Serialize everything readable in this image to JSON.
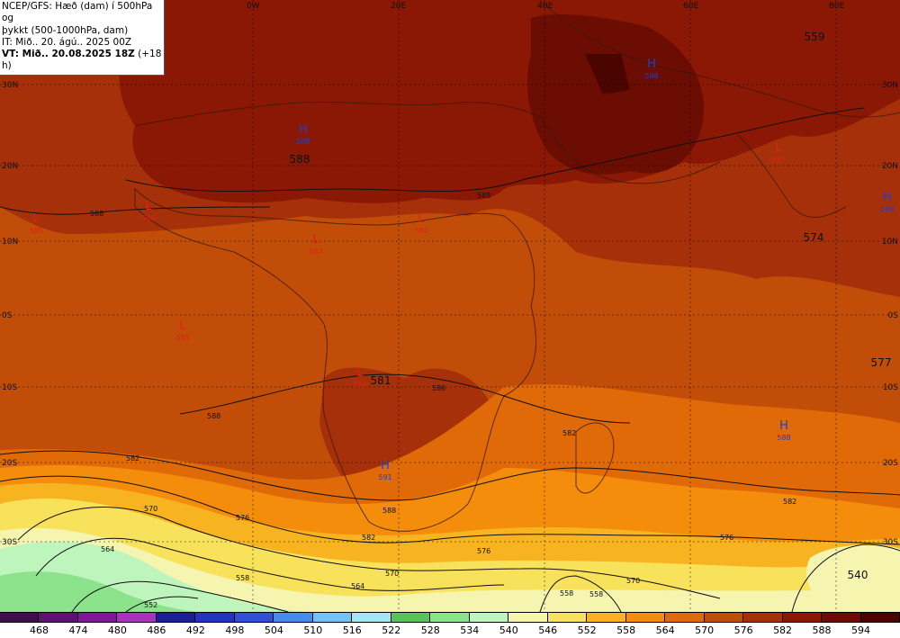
{
  "header": {
    "line1": "NCEP/GFS: Hæð (dam) í 500hPa og",
    "line2": "þykkt (500-1000hPa, dam)",
    "line3": "IT: Mið.. 20. ágú.. 2025 00Z",
    "line4_bold": "VT: Mið.. 20.08.2025 18Z",
    "line4_rest": " (+18 h)"
  },
  "lon_labels": [
    "0W",
    "20E",
    "40E",
    "60E",
    "80E"
  ],
  "lat_labels": [
    "30N",
    "20N",
    "10N",
    "0S",
    "10S",
    "20S",
    "30S"
  ],
  "pressure_centers": [
    {
      "type": "H",
      "value": "588"
    },
    {
      "type": "H",
      "value": "588"
    },
    {
      "type": "H",
      "value": "589"
    },
    {
      "type": "H",
      "value": "588"
    },
    {
      "type": "H",
      "value": "591"
    },
    {
      "type": "L",
      "value": "585"
    },
    {
      "type": "L",
      "value": "586"
    },
    {
      "type": "L",
      "value": "586"
    },
    {
      "type": "L",
      "value": "587"
    },
    {
      "type": "L",
      "value": "585"
    },
    {
      "type": "L",
      "value": "586"
    },
    {
      "type": "L",
      "value": "587"
    }
  ],
  "height_labels": [
    "559",
    "588",
    "574",
    "577",
    "581",
    "540"
  ],
  "contour_labels": [
    "588",
    "588",
    "588",
    "582",
    "582",
    "576",
    "576",
    "570",
    "570",
    "564",
    "564",
    "558",
    "558",
    "552",
    "582",
    "576",
    "570",
    "558",
    "582",
    "586",
    "588"
  ],
  "legend": {
    "colors": [
      "#3e0f4c",
      "#5d1370",
      "#7c1a93",
      "#a337b8",
      "#1a1f94",
      "#2232c4",
      "#3050dc",
      "#4a8ae8",
      "#78c0f4",
      "#a8e4f8",
      "#5cc15c",
      "#8ce38c",
      "#bdf5bd",
      "#f5f5b0",
      "#f8e25c",
      "#f7b320",
      "#f48c0c",
      "#e06a08",
      "#c14d08",
      "#a63009",
      "#8a1804",
      "#6b0d02",
      "#4a0501"
    ],
    "ticks": [
      "468",
      "474",
      "480",
      "486",
      "492",
      "498",
      "504",
      "510",
      "516",
      "522",
      "528",
      "534",
      "540",
      "546",
      "552",
      "558",
      "564",
      "570",
      "576",
      "582",
      "588",
      "594"
    ]
  }
}
